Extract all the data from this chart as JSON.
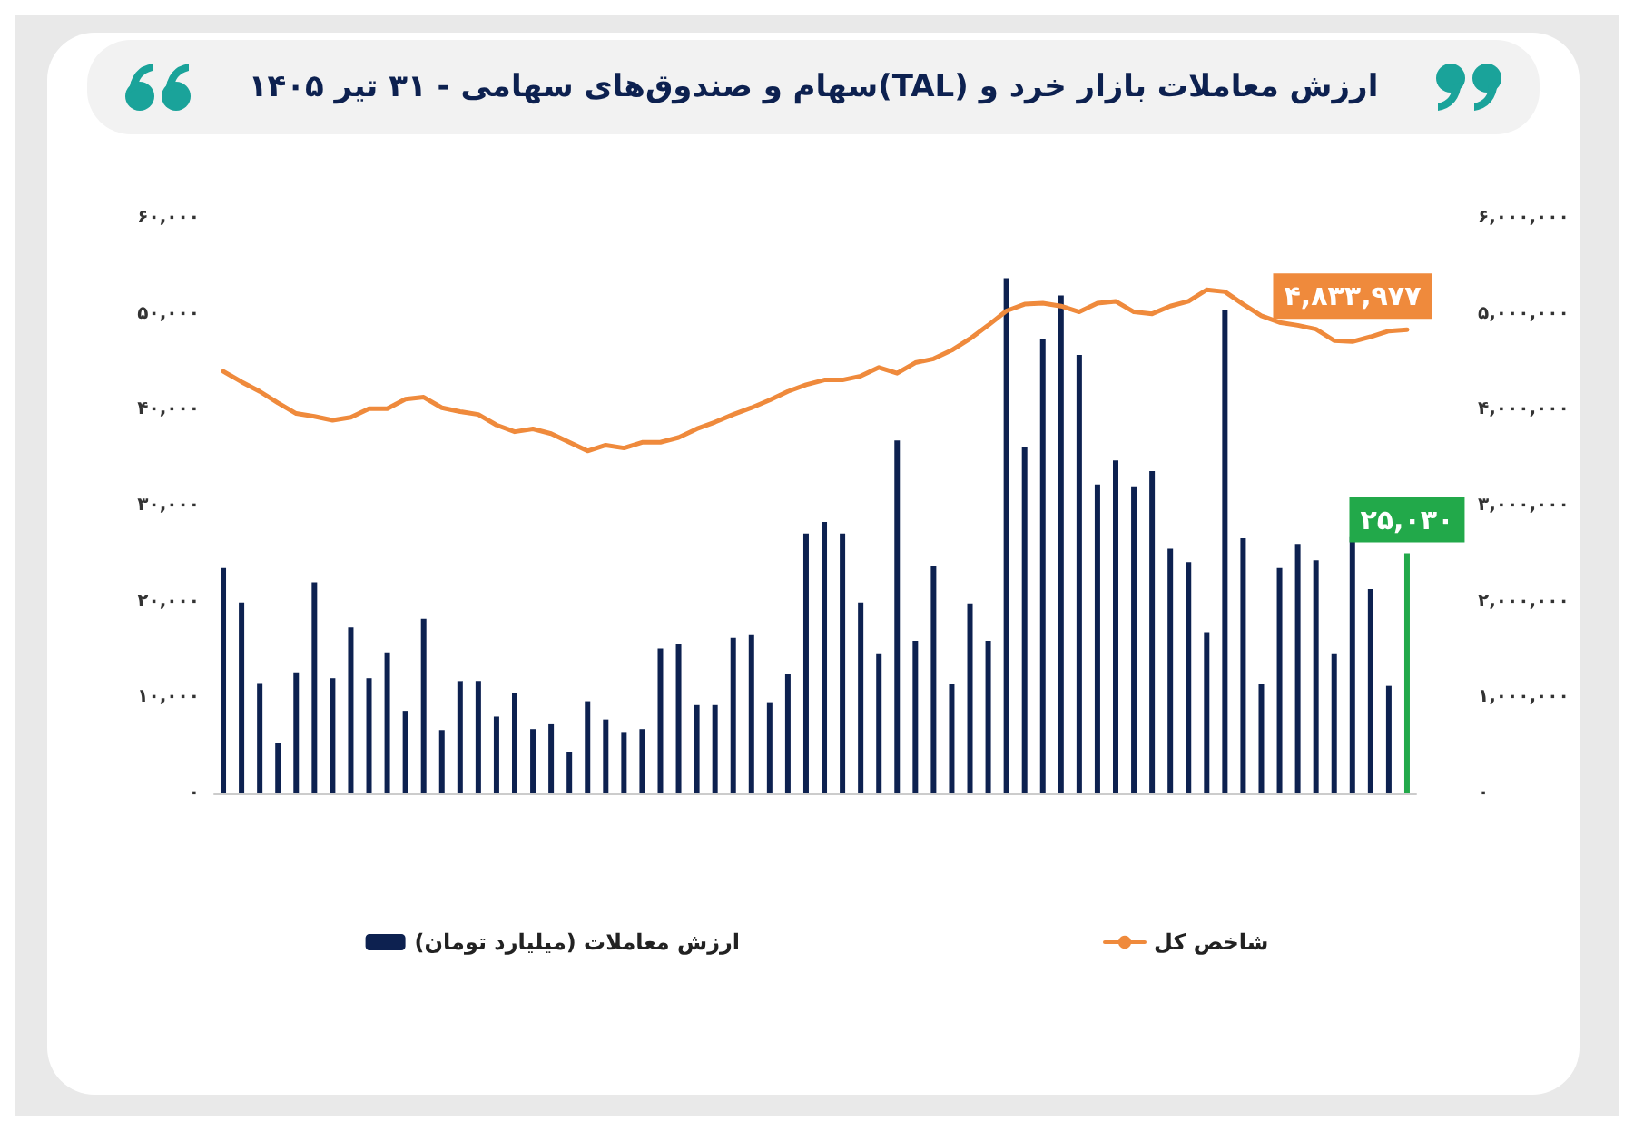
{
  "chart_data": {
    "type": "bar",
    "title": "ارزش معاملات بازار خرد و (TAL)سهام و صندوق‌های سهامی - ۳۱ تیر ۱۴۰۵",
    "categories": [
      null,
      null,
      null,
      null,
      null,
      null,
      null,
      null,
      null,
      null,
      null,
      null,
      null,
      null,
      null,
      null,
      null,
      null,
      null,
      null,
      null,
      null,
      null,
      null,
      null,
      null,
      null,
      null,
      null,
      null,
      null,
      null,
      null,
      null,
      null,
      null,
      null,
      null,
      null,
      null,
      null,
      null,
      null,
      null,
      null,
      null,
      null,
      null,
      null,
      null,
      null,
      null,
      null,
      null,
      null,
      null,
      null,
      null,
      null,
      null,
      null,
      null,
      null,
      null,
      null,
      null
    ],
    "series": [
      {
        "name": "ارزش معاملات (میلیارد تومان)",
        "color": "#0d2150",
        "colors": [
          "#0d2150",
          "#0d2150",
          "#0d2150",
          "#0d2150",
          "#0d2150",
          "#0d2150",
          "#0d2150",
          "#0d2150",
          "#0d2150",
          "#0d2150",
          "#0d2150",
          "#0d2150",
          "#0d2150",
          "#0d2150",
          "#0d2150",
          "#0d2150",
          "#0d2150",
          "#0d2150",
          "#0d2150",
          "#0d2150",
          "#0d2150",
          "#0d2150",
          "#0d2150",
          "#0d2150",
          "#0d2150",
          "#0d2150",
          "#0d2150",
          "#0d2150",
          "#0d2150",
          "#0d2150",
          "#0d2150",
          "#0d2150",
          "#0d2150",
          "#0d2150",
          "#0d2150",
          "#0d2150",
          "#0d2150",
          "#0d2150",
          "#0d2150",
          "#0d2150",
          "#0d2150",
          "#0d2150",
          "#0d2150",
          "#0d2150",
          "#0d2150",
          "#0d2150",
          "#0d2150",
          "#0d2150",
          "#0d2150",
          "#0d2150",
          "#0d2150",
          "#0d2150",
          "#0d2150",
          "#0d2150",
          "#0d2150",
          "#0d2150",
          "#0d2150",
          "#0d2150",
          "#0d2150",
          "#0d2150",
          "#0d2150",
          "#0d2150",
          "#0d2150",
          "#0d2150",
          "#0d2150",
          "#22a94a"
        ],
        "values": [
          23500,
          19900,
          11500,
          5300,
          12600,
          22000,
          12000,
          17300,
          12000,
          14700,
          8600,
          18200,
          6600,
          11700,
          11700,
          8000,
          10500,
          6700,
          7200,
          4300,
          9600,
          7700,
          6400,
          6700,
          15100,
          15600,
          9200,
          9200,
          16200,
          16500,
          9500,
          12500,
          27100,
          28300,
          27100,
          19900,
          14600,
          36800,
          15900,
          23700,
          11400,
          19800,
          15900,
          53700,
          36100,
          47400,
          51900,
          45700,
          32200,
          34700,
          32000,
          33600,
          25500,
          24100,
          16800,
          50400,
          26600,
          11400,
          23500,
          26000,
          24300,
          14600,
          26700,
          21300,
          11200,
          25030
        ],
        "value_labels": [
          null,
          null,
          null,
          null,
          null,
          null,
          null,
          null,
          null,
          null,
          null,
          null,
          null,
          null,
          null,
          null,
          null,
          null,
          null,
          null,
          null,
          null,
          null,
          null,
          null,
          null,
          null,
          null,
          null,
          null,
          null,
          null,
          null,
          null,
          null,
          null,
          null,
          null,
          null,
          null,
          null,
          null,
          null,
          null,
          null,
          null,
          null,
          null,
          null,
          null,
          null,
          null,
          null,
          null,
          null,
          null,
          null,
          null,
          null,
          null,
          null,
          null,
          null,
          null,
          null,
          "۲۵,۰۳۰"
        ]
      },
      {
        "name": "شاخص کل",
        "type": "line",
        "axis": "y2",
        "color": "#ef8a3c",
        "values": [
          4400000,
          4290000,
          4190000,
          4070000,
          3960000,
          3930000,
          3890000,
          3920000,
          4010000,
          4010000,
          4110000,
          4130000,
          4020000,
          3980000,
          3950000,
          3840000,
          3770000,
          3800000,
          3750000,
          3660000,
          3570000,
          3630000,
          3600000,
          3660000,
          3660000,
          3710000,
          3800000,
          3870000,
          3950000,
          4020000,
          4100000,
          4190000,
          4260000,
          4310000,
          4310000,
          4350000,
          4440000,
          4380000,
          4490000,
          4530000,
          4620000,
          4740000,
          4880000,
          5030000,
          5100000,
          5110000,
          5080000,
          5020000,
          5110000,
          5130000,
          5020000,
          5000000,
          5080000,
          5130000,
          5250000,
          5230000,
          5100000,
          4980000,
          4910000,
          4880000,
          4840000,
          4720000,
          4710000,
          4760000,
          4820000,
          4833977
        ],
        "value_labels": [
          null,
          null,
          null,
          null,
          null,
          null,
          null,
          null,
          null,
          null,
          null,
          null,
          null,
          null,
          null,
          null,
          null,
          null,
          null,
          null,
          null,
          null,
          null,
          null,
          null,
          null,
          null,
          null,
          null,
          null,
          null,
          null,
          null,
          null,
          null,
          null,
          null,
          null,
          null,
          null,
          null,
          null,
          null,
          null,
          null,
          null,
          null,
          null,
          null,
          null,
          null,
          null,
          null,
          null,
          null,
          null,
          null,
          null,
          null,
          null,
          null,
          null,
          null,
          null,
          null,
          "۴,۸۳۳,۹۷۷"
        ]
      }
    ],
    "ylim": [
      0,
      60000
    ],
    "yticks": [
      {
        "value": 0,
        "label": "۰"
      },
      {
        "value": 10000,
        "label": "۱۰,۰۰۰"
      },
      {
        "value": 20000,
        "label": "۲۰,۰۰۰"
      },
      {
        "value": 30000,
        "label": "۳۰,۰۰۰"
      },
      {
        "value": 40000,
        "label": "۴۰,۰۰۰"
      },
      {
        "value": 50000,
        "label": "۵۰,۰۰۰"
      },
      {
        "value": 60000,
        "label": "۶۰,۰۰۰"
      }
    ],
    "y2lim": [
      0,
      6000000
    ],
    "y2ticks": [
      {
        "value": 0,
        "label": "۰"
      },
      {
        "value": 1000000,
        "label": "۱,۰۰۰,۰۰۰"
      },
      {
        "value": 2000000,
        "label": "۲,۰۰۰,۰۰۰"
      },
      {
        "value": 3000000,
        "label": "۳,۰۰۰,۰۰۰"
      },
      {
        "value": 4000000,
        "label": "۴,۰۰۰,۰۰۰"
      },
      {
        "value": 5000000,
        "label": "۵,۰۰۰,۰۰۰"
      },
      {
        "value": 6000000,
        "label": "۶,۰۰۰,۰۰۰"
      }
    ],
    "grid": false,
    "legend": "bottom",
    "marker": "none",
    "line_style": "solid"
  }
}
